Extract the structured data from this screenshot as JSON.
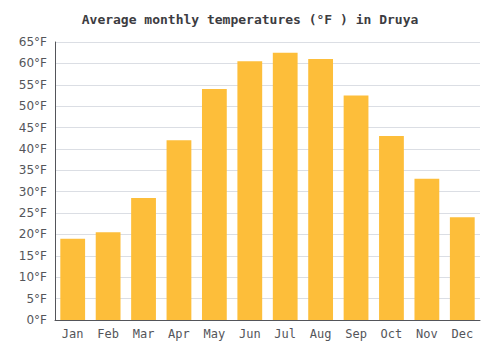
{
  "chart_data": {
    "type": "bar",
    "title": "Average monthly temperatures (°F ) in Druya",
    "categories": [
      "Jan",
      "Feb",
      "Mar",
      "Apr",
      "May",
      "Jun",
      "Jul",
      "Aug",
      "Sep",
      "Oct",
      "Nov",
      "Dec"
    ],
    "values": [
      19,
      20.5,
      28.5,
      42,
      54,
      60.5,
      62.5,
      61,
      52.5,
      43,
      33,
      24
    ],
    "color": "#FDBE3A",
    "ylim": [
      0,
      65
    ],
    "yticks": [
      {
        "value": 0,
        "label": "0°F"
      },
      {
        "value": 5,
        "label": "5°F"
      },
      {
        "value": 10,
        "label": "10°F"
      },
      {
        "value": 15,
        "label": "15°F"
      },
      {
        "value": 20,
        "label": "20°F"
      },
      {
        "value": 25,
        "label": "25°F"
      },
      {
        "value": 30,
        "label": "30°F"
      },
      {
        "value": 35,
        "label": "35°F"
      },
      {
        "value": 40,
        "label": "40°F"
      },
      {
        "value": 45,
        "label": "45°F"
      },
      {
        "value": 50,
        "label": "50°F"
      },
      {
        "value": 55,
        "label": "55°F"
      },
      {
        "value": 60,
        "label": "60°F"
      },
      {
        "value": 65,
        "label": "65°F"
      }
    ],
    "grid": true
  }
}
